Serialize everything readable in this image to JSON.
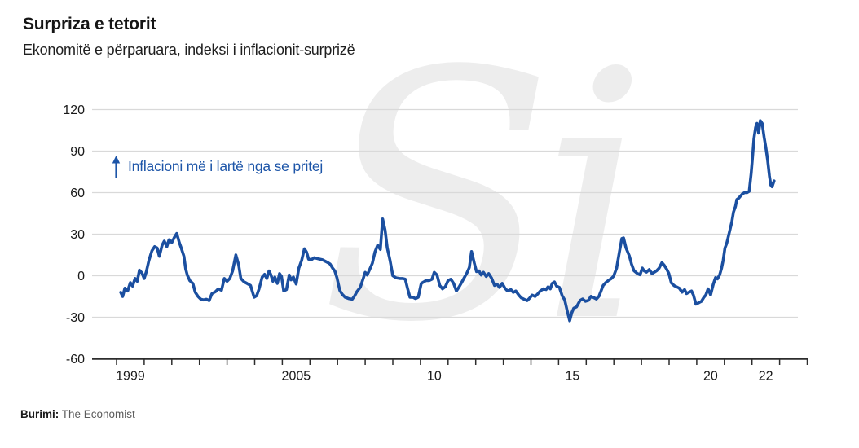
{
  "header": {
    "title": "Surpriza e tetorit",
    "subtitle": "Ekonomitë e përparuara, indeksi i inflacionit-surprizë"
  },
  "annotation": {
    "icon": "up-arrow-icon",
    "text": "Inflacioni më i lartë nga se pritej"
  },
  "watermark_text": "Si",
  "footer": {
    "source_label": "Burimi:",
    "source_value": "The Economist"
  },
  "colors": {
    "line": "#1b4fa0",
    "annotation": "#1d55a8",
    "grid": "#d9d9d9",
    "axis": "#2d2d2d",
    "text": "#1a1a1a",
    "muted": "#5c5c5c",
    "watermark": "#ededed"
  },
  "chart_data": {
    "type": "line",
    "title": "Surpriza e tetorit",
    "subtitle": "Ekonomitë e përparuara, indeksi i inflacionit-surprizë",
    "grid": true,
    "legend": "none",
    "y_axis": {
      "ticks": [
        120,
        90,
        60,
        30,
        0,
        -30,
        -60
      ],
      "range": [
        -60,
        120
      ]
    },
    "x_axis": {
      "tick_start_year": 1999,
      "tick_end_year": 2024,
      "labels": [
        {
          "text": "1999",
          "t": 1999.5
        },
        {
          "text": "2005",
          "t": 2005.5
        },
        {
          "text": "10",
          "t": 2010.5
        },
        {
          "text": "15",
          "t": 2015.5
        },
        {
          "text": "20",
          "t": 2020.5
        },
        {
          "text": "22",
          "t": 2022.5
        }
      ]
    },
    "series": [
      {
        "name": "indeksi i inflacionit-surprizë",
        "points": [
          [
            1999.15,
            -12
          ],
          [
            1999.22,
            -15
          ],
          [
            1999.3,
            -9
          ],
          [
            1999.4,
            -11
          ],
          [
            1999.5,
            -5
          ],
          [
            1999.58,
            -7.5
          ],
          [
            1999.67,
            -2
          ],
          [
            1999.75,
            -4
          ],
          [
            1999.83,
            4
          ],
          [
            1999.92,
            2
          ],
          [
            2000.0,
            -2
          ],
          [
            2000.08,
            3
          ],
          [
            2000.17,
            11
          ],
          [
            2000.28,
            18
          ],
          [
            2000.38,
            21
          ],
          [
            2000.47,
            20
          ],
          [
            2000.55,
            14
          ],
          [
            2000.65,
            22
          ],
          [
            2000.73,
            25
          ],
          [
            2000.82,
            21
          ],
          [
            2000.9,
            26
          ],
          [
            2001.0,
            24
          ],
          [
            2001.1,
            28
          ],
          [
            2001.18,
            30.5
          ],
          [
            2001.27,
            24
          ],
          [
            2001.35,
            19.5
          ],
          [
            2001.44,
            14
          ],
          [
            2001.5,
            5
          ],
          [
            2001.56,
            0.5
          ],
          [
            2001.65,
            -3.5
          ],
          [
            2001.76,
            -5.5
          ],
          [
            2001.85,
            -12
          ],
          [
            2001.95,
            -15
          ],
          [
            2002.05,
            -17
          ],
          [
            2002.15,
            -17.5
          ],
          [
            2002.25,
            -17
          ],
          [
            2002.35,
            -18
          ],
          [
            2002.45,
            -13
          ],
          [
            2002.58,
            -11.5
          ],
          [
            2002.68,
            -9.5
          ],
          [
            2002.8,
            -10.5
          ],
          [
            2002.9,
            -2
          ],
          [
            2003.0,
            -4
          ],
          [
            2003.1,
            -2
          ],
          [
            2003.2,
            3.5
          ],
          [
            2003.32,
            15
          ],
          [
            2003.42,
            8
          ],
          [
            2003.5,
            -2
          ],
          [
            2003.62,
            -4.5
          ],
          [
            2003.72,
            -5.5
          ],
          [
            2003.85,
            -7
          ],
          [
            2003.98,
            -15.5
          ],
          [
            2004.07,
            -14.5
          ],
          [
            2004.16,
            -9.5
          ],
          [
            2004.27,
            -1
          ],
          [
            2004.36,
            1
          ],
          [
            2004.44,
            -2
          ],
          [
            2004.52,
            3.5
          ],
          [
            2004.58,
            1
          ],
          [
            2004.66,
            -4
          ],
          [
            2004.73,
            -1
          ],
          [
            2004.82,
            -5.5
          ],
          [
            2004.9,
            1.5
          ],
          [
            2004.97,
            -0.5
          ],
          [
            2005.05,
            -11
          ],
          [
            2005.15,
            -10
          ],
          [
            2005.25,
            0.5
          ],
          [
            2005.32,
            -3
          ],
          [
            2005.4,
            -1
          ],
          [
            2005.5,
            -6
          ],
          [
            2005.6,
            5.5
          ],
          [
            2005.7,
            11
          ],
          [
            2005.8,
            19.5
          ],
          [
            2005.88,
            17
          ],
          [
            2005.95,
            12
          ],
          [
            2006.05,
            11.5
          ],
          [
            2006.15,
            13
          ],
          [
            2006.25,
            12.5
          ],
          [
            2006.35,
            12
          ],
          [
            2006.45,
            11.5
          ],
          [
            2006.55,
            10.5
          ],
          [
            2006.65,
            9.5
          ],
          [
            2006.73,
            8.5
          ],
          [
            2006.82,
            5.5
          ],
          [
            2006.9,
            3.5
          ],
          [
            2006.98,
            -1.5
          ],
          [
            2007.08,
            -10.5
          ],
          [
            2007.17,
            -13.5
          ],
          [
            2007.27,
            -15.5
          ],
          [
            2007.4,
            -16.5
          ],
          [
            2007.53,
            -17
          ],
          [
            2007.62,
            -14.5
          ],
          [
            2007.7,
            -11.5
          ],
          [
            2007.82,
            -8.5
          ],
          [
            2007.92,
            -2.5
          ],
          [
            2008.0,
            2.5
          ],
          [
            2008.07,
            0.5
          ],
          [
            2008.15,
            4
          ],
          [
            2008.26,
            9
          ],
          [
            2008.35,
            17
          ],
          [
            2008.45,
            22
          ],
          [
            2008.55,
            19
          ],
          [
            2008.63,
            41
          ],
          [
            2008.72,
            33
          ],
          [
            2008.8,
            20
          ],
          [
            2008.9,
            11
          ],
          [
            2009.0,
            0
          ],
          [
            2009.12,
            -1.5
          ],
          [
            2009.25,
            -2
          ],
          [
            2009.35,
            -2
          ],
          [
            2009.45,
            -2.5
          ],
          [
            2009.53,
            -9
          ],
          [
            2009.62,
            -15.5
          ],
          [
            2009.73,
            -15.5
          ],
          [
            2009.82,
            -16.5
          ],
          [
            2009.92,
            -15.5
          ],
          [
            2010.03,
            -5.5
          ],
          [
            2010.12,
            -4.5
          ],
          [
            2010.2,
            -3.5
          ],
          [
            2010.32,
            -3.5
          ],
          [
            2010.42,
            -2.5
          ],
          [
            2010.5,
            2.5
          ],
          [
            2010.6,
            0.5
          ],
          [
            2010.7,
            -7
          ],
          [
            2010.8,
            -9.5
          ],
          [
            2010.9,
            -8
          ],
          [
            2011.0,
            -3.5
          ],
          [
            2011.1,
            -2.5
          ],
          [
            2011.2,
            -5.5
          ],
          [
            2011.3,
            -11
          ],
          [
            2011.4,
            -8
          ],
          [
            2011.5,
            -4.5
          ],
          [
            2011.58,
            -1.5
          ],
          [
            2011.68,
            2
          ],
          [
            2011.77,
            6
          ],
          [
            2011.85,
            17.5
          ],
          [
            2011.95,
            9
          ],
          [
            2012.03,
            3
          ],
          [
            2012.12,
            3.5
          ],
          [
            2012.2,
            0.5
          ],
          [
            2012.28,
            2.5
          ],
          [
            2012.38,
            -0.5
          ],
          [
            2012.47,
            1.5
          ],
          [
            2012.57,
            -1.5
          ],
          [
            2012.68,
            -7
          ],
          [
            2012.77,
            -6
          ],
          [
            2012.86,
            -8.5
          ],
          [
            2012.96,
            -5.5
          ],
          [
            2013.06,
            -9
          ],
          [
            2013.15,
            -11
          ],
          [
            2013.27,
            -10
          ],
          [
            2013.36,
            -12
          ],
          [
            2013.45,
            -11
          ],
          [
            2013.56,
            -14
          ],
          [
            2013.65,
            -16
          ],
          [
            2013.75,
            -17
          ],
          [
            2013.86,
            -18
          ],
          [
            2013.96,
            -16
          ],
          [
            2014.04,
            -14
          ],
          [
            2014.15,
            -15
          ],
          [
            2014.25,
            -13
          ],
          [
            2014.34,
            -11
          ],
          [
            2014.45,
            -9.5
          ],
          [
            2014.55,
            -10
          ],
          [
            2014.62,
            -8
          ],
          [
            2014.7,
            -9.5
          ],
          [
            2014.77,
            -5.5
          ],
          [
            2014.85,
            -4.5
          ],
          [
            2014.93,
            -7.5
          ],
          [
            2015.03,
            -8.5
          ],
          [
            2015.13,
            -14.5
          ],
          [
            2015.22,
            -17.5
          ],
          [
            2015.32,
            -26
          ],
          [
            2015.4,
            -32.5
          ],
          [
            2015.48,
            -26.5
          ],
          [
            2015.55,
            -23.5
          ],
          [
            2015.65,
            -22.5
          ],
          [
            2015.78,
            -17.8
          ],
          [
            2015.87,
            -16.8
          ],
          [
            2015.97,
            -18.5
          ],
          [
            2016.08,
            -17.8
          ],
          [
            2016.17,
            -14.9
          ],
          [
            2016.27,
            -15.8
          ],
          [
            2016.37,
            -16.8
          ],
          [
            2016.46,
            -14.9
          ],
          [
            2016.52,
            -11.9
          ],
          [
            2016.61,
            -7.1
          ],
          [
            2016.7,
            -5.1
          ],
          [
            2016.82,
            -3.2
          ],
          [
            2016.9,
            -2.2
          ],
          [
            2016.99,
            -0.3
          ],
          [
            2017.1,
            5.5
          ],
          [
            2017.2,
            17.2
          ],
          [
            2017.29,
            26.9
          ],
          [
            2017.35,
            27.3
          ],
          [
            2017.44,
            20.1
          ],
          [
            2017.56,
            14.3
          ],
          [
            2017.64,
            8.4
          ],
          [
            2017.73,
            3.6
          ],
          [
            2017.85,
            1.6
          ],
          [
            2017.95,
            0.7
          ],
          [
            2018.03,
            5.5
          ],
          [
            2018.1,
            3.5
          ],
          [
            2018.18,
            2.6
          ],
          [
            2018.28,
            4.5
          ],
          [
            2018.38,
            1.6
          ],
          [
            2018.47,
            2.6
          ],
          [
            2018.55,
            3.6
          ],
          [
            2018.64,
            5.5
          ],
          [
            2018.74,
            9.4
          ],
          [
            2018.83,
            7.4
          ],
          [
            2018.92,
            4.5
          ],
          [
            2018.99,
            1.6
          ],
          [
            2019.08,
            -5.1
          ],
          [
            2019.18,
            -7.1
          ],
          [
            2019.28,
            -8.1
          ],
          [
            2019.37,
            -9
          ],
          [
            2019.47,
            -11.9
          ],
          [
            2019.56,
            -10
          ],
          [
            2019.63,
            -12.9
          ],
          [
            2019.72,
            -11.9
          ],
          [
            2019.81,
            -11
          ],
          [
            2019.88,
            -13.9
          ],
          [
            2019.97,
            -20.5
          ],
          [
            2020.08,
            -19.5
          ],
          [
            2020.17,
            -18.5
          ],
          [
            2020.25,
            -15.8
          ],
          [
            2020.33,
            -13.9
          ],
          [
            2020.41,
            -9.5
          ],
          [
            2020.5,
            -13.9
          ],
          [
            2020.6,
            -6.2
          ],
          [
            2020.68,
            -1.3
          ],
          [
            2020.75,
            -2.3
          ],
          [
            2020.83,
            0.6
          ],
          [
            2020.9,
            5.5
          ],
          [
            2020.96,
            11.3
          ],
          [
            2021.02,
            20
          ],
          [
            2021.08,
            23
          ],
          [
            2021.13,
            27
          ],
          [
            2021.2,
            33
          ],
          [
            2021.27,
            39
          ],
          [
            2021.33,
            46
          ],
          [
            2021.4,
            50
          ],
          [
            2021.45,
            55
          ],
          [
            2021.52,
            56
          ],
          [
            2021.58,
            57.5
          ],
          [
            2021.65,
            59
          ],
          [
            2021.73,
            60
          ],
          [
            2021.82,
            60
          ],
          [
            2021.9,
            61
          ],
          [
            2021.97,
            74
          ],
          [
            2022.02,
            86
          ],
          [
            2022.07,
            99
          ],
          [
            2022.13,
            107
          ],
          [
            2022.18,
            110
          ],
          [
            2022.24,
            103
          ],
          [
            2022.3,
            112
          ],
          [
            2022.37,
            110
          ],
          [
            2022.44,
            100
          ],
          [
            2022.5,
            93
          ],
          [
            2022.57,
            83
          ],
          [
            2022.63,
            72
          ],
          [
            2022.68,
            65.5
          ],
          [
            2022.73,
            64.3
          ],
          [
            2022.8,
            68.5
          ]
        ]
      }
    ],
    "annotation": "Inflacioni më i lartë nga se pritej",
    "source": "Burimi: The Economist"
  }
}
